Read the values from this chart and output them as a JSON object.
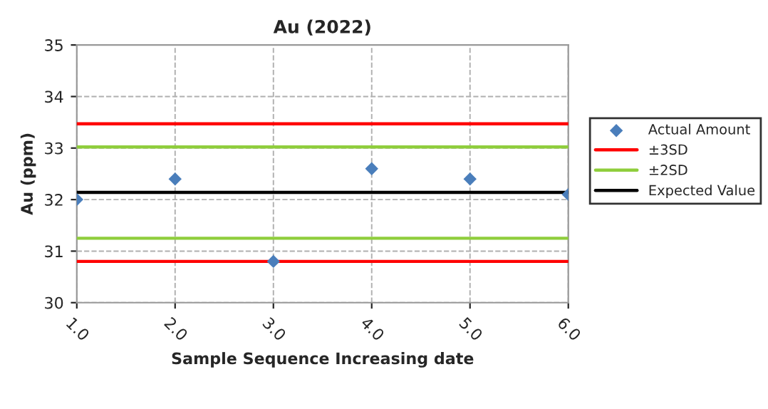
{
  "chart_data": {
    "type": "scatter",
    "title": "Au (2022)",
    "xlabel": "Sample Sequence Increasing date",
    "ylabel": "Au (ppm)",
    "xlim": [
      1,
      6
    ],
    "ylim": [
      30,
      35
    ],
    "xticks": [
      {
        "value": 1,
        "label": "1.0"
      },
      {
        "value": 2,
        "label": "2.0"
      },
      {
        "value": 3,
        "label": "3.0"
      },
      {
        "value": 4,
        "label": "4.0"
      },
      {
        "value": 5,
        "label": "5.0"
      },
      {
        "value": 6,
        "label": "6.0"
      }
    ],
    "yticks": [
      30,
      31,
      32,
      33,
      34,
      35
    ],
    "grid": true,
    "legend": "right",
    "series": [
      {
        "name": "Actual Amount",
        "marker": "diamond",
        "color": "#4a7ebb",
        "x": [
          1,
          2,
          3,
          4,
          5,
          6
        ],
        "values": [
          32.0,
          32.4,
          30.8,
          32.6,
          32.4,
          32.1
        ]
      },
      {
        "name": "±3SD",
        "type": "line",
        "color": "#ff0000",
        "x": [
          1,
          6
        ],
        "values": [
          33.47,
          33.47
        ]
      },
      {
        "type": "line",
        "color": "#ff0000",
        "x": [
          1,
          6
        ],
        "values": [
          30.8,
          30.8
        ]
      },
      {
        "name": "±2SD",
        "type": "line",
        "color": "#8fce3c",
        "x": [
          1,
          6
        ],
        "values": [
          33.02,
          33.02
        ]
      },
      {
        "type": "line",
        "color": "#8fce3c",
        "x": [
          1,
          6
        ],
        "values": [
          31.25,
          31.25
        ]
      },
      {
        "name": "Expected Value",
        "type": "line",
        "color": "#000000",
        "x": [
          1,
          6
        ],
        "values": [
          32.14,
          32.14
        ]
      }
    ]
  }
}
